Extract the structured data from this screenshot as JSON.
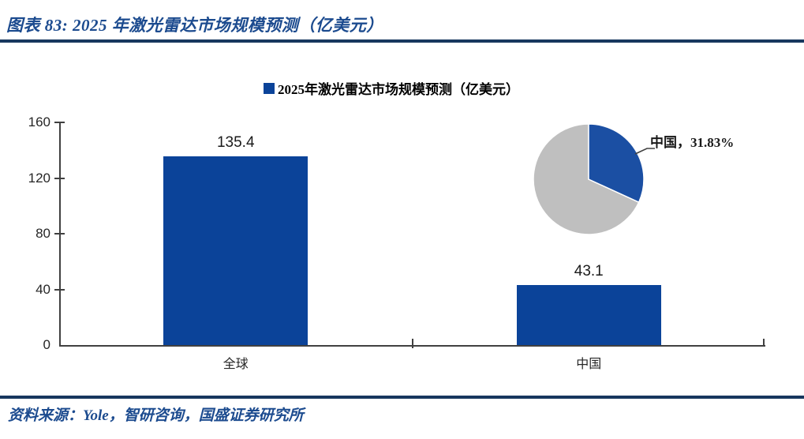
{
  "figure_header": {
    "title": "图表 83: 2025 年激光雷达市场规模预测（亿美元）"
  },
  "legend": {
    "label": "2025年激光雷达市场规模预测（亿美元）",
    "swatch_color": "#0B4399"
  },
  "footer": {
    "source": "资料来源：Yole，智研咨询，国盛证券研究所"
  },
  "colors": {
    "accent_blue": "#0B4399",
    "title_blue": "#1C4B8F",
    "divider_navy": "#17375E",
    "axis_gray": "#404040",
    "pie_rest_gray": "#BFBFBF"
  },
  "chart_data": {
    "type": "bar",
    "title": "2025年激光雷达市场规模预测（亿美元）",
    "categories": [
      "全球",
      "中国"
    ],
    "values": [
      135.4,
      43.1
    ],
    "value_labels": [
      "135.4",
      "43.1"
    ],
    "xlabel": "",
    "ylabel": "",
    "ylim": [
      0,
      160
    ],
    "yticks": [
      0,
      40,
      80,
      120,
      160
    ],
    "grid": false,
    "legend_position": "top-center",
    "bar_color": "#0B4399",
    "inset_pie": {
      "type": "pie",
      "annotation": "中国，31.83%",
      "slices": [
        {
          "label": "中国",
          "pct": 31.83,
          "color": "#1B4FA3"
        },
        {
          "label": "",
          "pct": 68.17,
          "color": "#BFBFBF"
        }
      ]
    }
  }
}
